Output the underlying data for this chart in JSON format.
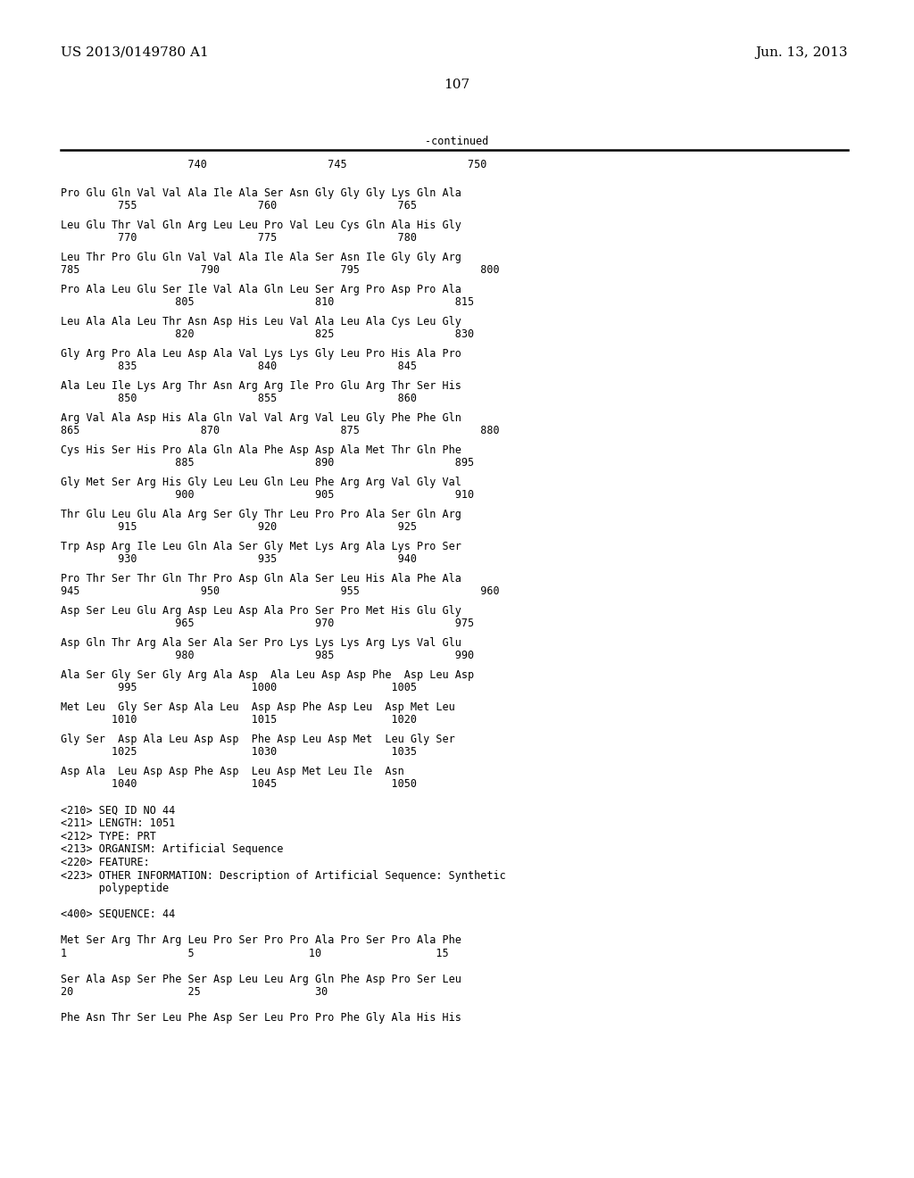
{
  "header_left": "US 2013/0149780 A1",
  "header_right": "Jun. 13, 2013",
  "page_number": "107",
  "continued_label": "-continued",
  "bg_color": "#ffffff",
  "text_color": "#000000",
  "font_size_header": 11.0,
  "font_size_body": 8.5,
  "font_size_page": 11.0,
  "ruler_line": "                    740                   745                   750",
  "seq_blocks": [
    [
      "Pro Glu Gln Val Val Ala Ile Ala Ser Asn Gly Gly Gly Lys Gln Ala",
      "         755                   760                   765"
    ],
    [
      "Leu Glu Thr Val Gln Arg Leu Leu Pro Val Leu Cys Gln Ala His Gly",
      "         770                   775                   780"
    ],
    [
      "Leu Thr Pro Glu Gln Val Val Ala Ile Ala Ser Asn Ile Gly Gly Arg",
      "785                   790                   795                   800"
    ],
    [
      "Pro Ala Leu Glu Ser Ile Val Ala Gln Leu Ser Arg Pro Asp Pro Ala",
      "                  805                   810                   815"
    ],
    [
      "Leu Ala Ala Leu Thr Asn Asp His Leu Val Ala Leu Ala Cys Leu Gly",
      "                  820                   825                   830"
    ],
    [
      "Gly Arg Pro Ala Leu Asp Ala Val Lys Lys Gly Leu Pro His Ala Pro",
      "         835                   840                   845"
    ],
    [
      "Ala Leu Ile Lys Arg Thr Asn Arg Arg Ile Pro Glu Arg Thr Ser His",
      "         850                   855                   860"
    ],
    [
      "Arg Val Ala Asp His Ala Gln Val Val Arg Val Leu Gly Phe Phe Gln",
      "865                   870                   875                   880"
    ],
    [
      "Cys His Ser His Pro Ala Gln Ala Phe Asp Asp Ala Met Thr Gln Phe",
      "                  885                   890                   895"
    ],
    [
      "Gly Met Ser Arg His Gly Leu Leu Gln Leu Phe Arg Arg Val Gly Val",
      "                  900                   905                   910"
    ],
    [
      "Thr Glu Leu Glu Ala Arg Ser Gly Thr Leu Pro Pro Ala Ser Gln Arg",
      "         915                   920                   925"
    ],
    [
      "Trp Asp Arg Ile Leu Gln Ala Ser Gly Met Lys Arg Ala Lys Pro Ser",
      "         930                   935                   940"
    ],
    [
      "Pro Thr Ser Thr Gln Thr Pro Asp Gln Ala Ser Leu His Ala Phe Ala",
      "945                   950                   955                   960"
    ],
    [
      "Asp Ser Leu Glu Arg Asp Leu Asp Ala Pro Ser Pro Met His Glu Gly",
      "                  965                   970                   975"
    ],
    [
      "Asp Gln Thr Arg Ala Ser Ala Ser Pro Lys Lys Lys Arg Lys Val Glu",
      "                  980                   985                   990"
    ],
    [
      "Ala Ser Gly Ser Gly Arg Ala Asp  Ala Leu Asp Asp Phe  Asp Leu Asp",
      "         995                  1000                  1005"
    ],
    [
      "Met Leu  Gly Ser Asp Ala Leu  Asp Asp Phe Asp Leu  Asp Met Leu",
      "        1010                  1015                  1020"
    ],
    [
      "Gly Ser  Asp Ala Leu Asp Asp  Phe Asp Leu Asp Met  Leu Gly Ser",
      "        1025                  1030                  1035"
    ],
    [
      "Asp Ala  Leu Asp Asp Phe Asp  Leu Asp Met Leu Ile  Asn",
      "        1040                  1045                  1050"
    ]
  ],
  "seq_id_lines": [
    "<210> SEQ ID NO 44",
    "<211> LENGTH: 1051",
    "<212> TYPE: PRT",
    "<213> ORGANISM: Artificial Sequence",
    "<220> FEATURE:",
    "<223> OTHER INFORMATION: Description of Artificial Sequence: Synthetic",
    "      polypeptide",
    "",
    "<400> SEQUENCE: 44",
    "",
    "Met Ser Arg Thr Arg Leu Pro Ser Pro Pro Ala Pro Ser Pro Ala Phe",
    "1                   5                  10                  15",
    "",
    "Ser Ala Asp Ser Phe Ser Asp Leu Leu Arg Gln Phe Asp Pro Ser Leu",
    "20                  25                  30",
    "",
    "Phe Asn Thr Ser Leu Phe Asp Ser Leu Pro Pro Phe Gly Ala His His"
  ]
}
